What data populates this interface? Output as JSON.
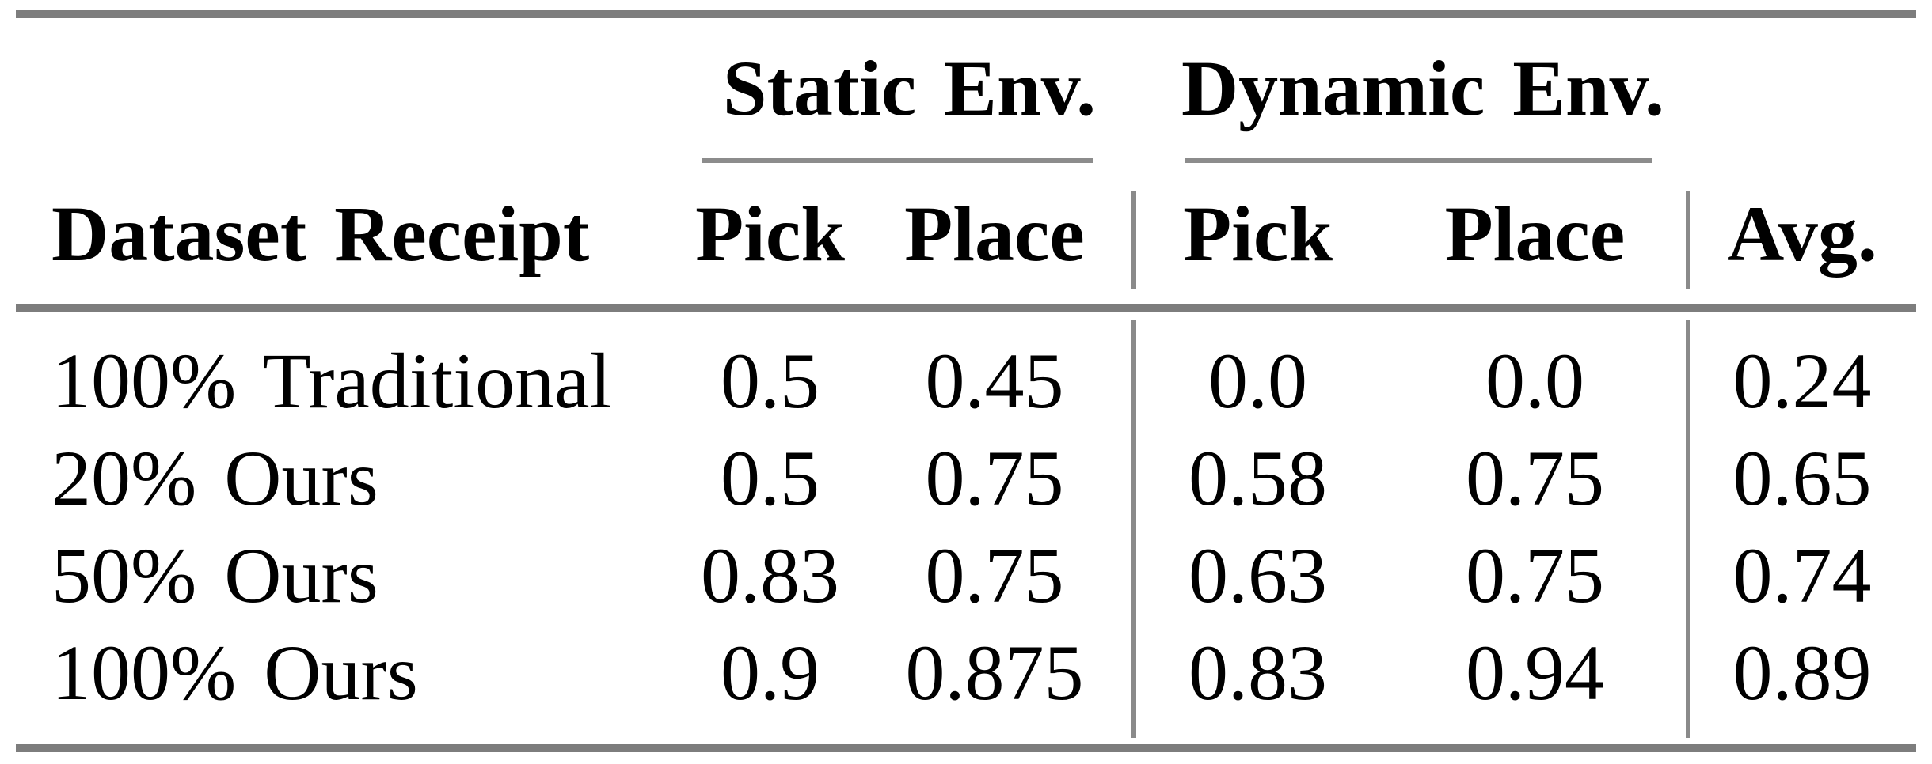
{
  "page": {
    "background": "#ffffff",
    "text_color": "#000000",
    "thick_rule_color": "#7d7d7d",
    "thin_rule_color": "#8c8c8c"
  },
  "table": {
    "group_headers": {
      "static": "Static Env.",
      "dynamic": "Dynamic Env."
    },
    "column_headers": {
      "dataset": "Dataset Receipt",
      "static_pick": "Pick",
      "static_place": "Place",
      "dynamic_pick": "Pick",
      "dynamic_place": "Place",
      "avg": "Avg."
    },
    "rows": [
      {
        "label": "100% Traditional",
        "values": [
          "0.5",
          "0.45",
          "0.0",
          "0.0",
          "0.24"
        ]
      },
      {
        "label": "20% Ours",
        "values": [
          "0.5",
          "0.75",
          "0.58",
          "0.75",
          "0.65"
        ]
      },
      {
        "label": "50% Ours",
        "values": [
          "0.83",
          "0.75",
          "0.63",
          "0.75",
          "0.74"
        ]
      },
      {
        "label": "100% Ours",
        "values": [
          "0.9",
          "0.875",
          "0.83",
          "0.94",
          "0.89"
        ]
      }
    ]
  },
  "chart_data": {
    "type": "table",
    "columns": [
      "Dataset Receipt",
      "Static Env. Pick",
      "Static Env. Place",
      "Dynamic Env. Pick",
      "Dynamic Env. Place",
      "Avg."
    ],
    "rows": [
      [
        "100% Traditional",
        0.5,
        0.45,
        0.0,
        0.0,
        0.24
      ],
      [
        "20% Ours",
        0.5,
        0.75,
        0.58,
        0.75,
        0.65
      ],
      [
        "50% Ours",
        0.83,
        0.75,
        0.63,
        0.75,
        0.74
      ],
      [
        "100% Ours",
        0.9,
        0.875,
        0.83,
        0.94,
        0.89
      ]
    ]
  }
}
